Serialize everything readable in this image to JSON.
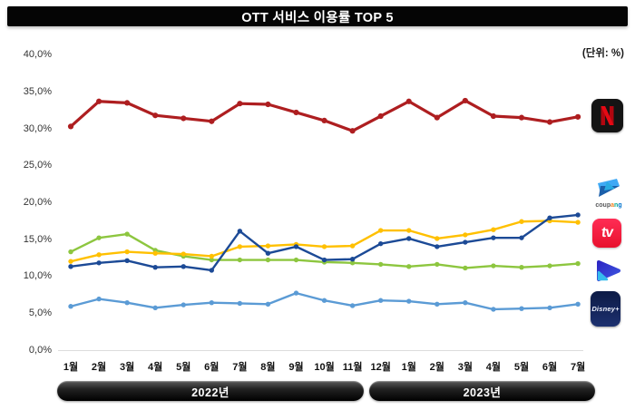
{
  "header": {
    "title": "OTT 서비스 이용률 TOP 5"
  },
  "unit_note": "(단위: %)",
  "chart_data": {
    "type": "line",
    "title": "OTT 서비스 이용률 TOP 5",
    "ylabel": "%",
    "ylim": [
      0,
      40
    ],
    "grid": false,
    "legend_position": "right",
    "y_ticks": [
      {
        "value": 40,
        "label": "40,0%"
      },
      {
        "value": 35,
        "label": "35,0%"
      },
      {
        "value": 30,
        "label": "30,0%"
      },
      {
        "value": 25,
        "label": "25,0%"
      },
      {
        "value": 20,
        "label": "20,0%"
      },
      {
        "value": 15,
        "label": "15,0%"
      },
      {
        "value": 10,
        "label": "10,0%"
      },
      {
        "value": 5,
        "label": "5,0%"
      },
      {
        "value": 0,
        "label": "0,0%"
      }
    ],
    "categories": [
      "1월",
      "2월",
      "3월",
      "4월",
      "5월",
      "6월",
      "7월",
      "8월",
      "9월",
      "10월",
      "11월",
      "12월",
      "1월",
      "2월",
      "3월",
      "4월",
      "5월",
      "6월",
      "7월"
    ],
    "series": [
      {
        "name": "Netflix",
        "color": "#AE1E20",
        "legend_icon": "netflix-icon",
        "values": [
          30.4,
          33.8,
          33.6,
          31.9,
          31.5,
          31.1,
          33.5,
          33.4,
          32.3,
          31.2,
          29.8,
          31.8,
          33.8,
          31.6,
          33.9,
          31.8,
          31.6,
          31.0,
          31.7
        ]
      },
      {
        "name": "Coupang Play",
        "color": "#1C4A96",
        "legend_icon": "coupang-play-icon",
        "values": [
          11.4,
          11.9,
          12.2,
          11.3,
          11.4,
          10.9,
          16.2,
          13.2,
          14.1,
          12.3,
          12.4,
          14.5,
          15.2,
          14.1,
          14.7,
          15.3,
          15.3,
          18.0,
          18.4
        ]
      },
      {
        "name": "TVING",
        "color": "#FFC000",
        "legend_icon": "tving-icon",
        "values": [
          12.1,
          13.0,
          13.4,
          13.2,
          13.1,
          12.8,
          14.1,
          14.2,
          14.4,
          14.1,
          14.2,
          16.3,
          16.3,
          15.2,
          15.7,
          16.4,
          17.5,
          17.6,
          17.4
        ]
      },
      {
        "name": "wavve",
        "color": "#8DC63F",
        "legend_icon": "wavve-icon",
        "values": [
          13.4,
          15.3,
          15.8,
          13.6,
          12.8,
          12.3,
          12.3,
          12.3,
          12.3,
          12.0,
          11.9,
          11.7,
          11.4,
          11.7,
          11.2,
          11.5,
          11.3,
          11.5,
          11.8
        ]
      },
      {
        "name": "Disney+",
        "color": "#5B9BD5",
        "legend_icon": "disney-plus-icon",
        "values": [
          6.0,
          7.0,
          6.5,
          5.8,
          6.2,
          6.5,
          6.4,
          6.3,
          7.8,
          6.8,
          6.1,
          6.8,
          6.7,
          6.3,
          6.5,
          5.6,
          5.7,
          5.8,
          6.3
        ]
      }
    ],
    "x_groups": [
      {
        "label": "2022년",
        "from": 0,
        "to": 11
      },
      {
        "label": "2023년",
        "from": 12,
        "to": 18
      }
    ]
  },
  "legend": {
    "coupang_text": "coupang",
    "tving_text": "tv",
    "disney_text": "Disney+"
  },
  "period_bars": {
    "bar_2022": "2022년",
    "bar_2023": "2023년"
  }
}
